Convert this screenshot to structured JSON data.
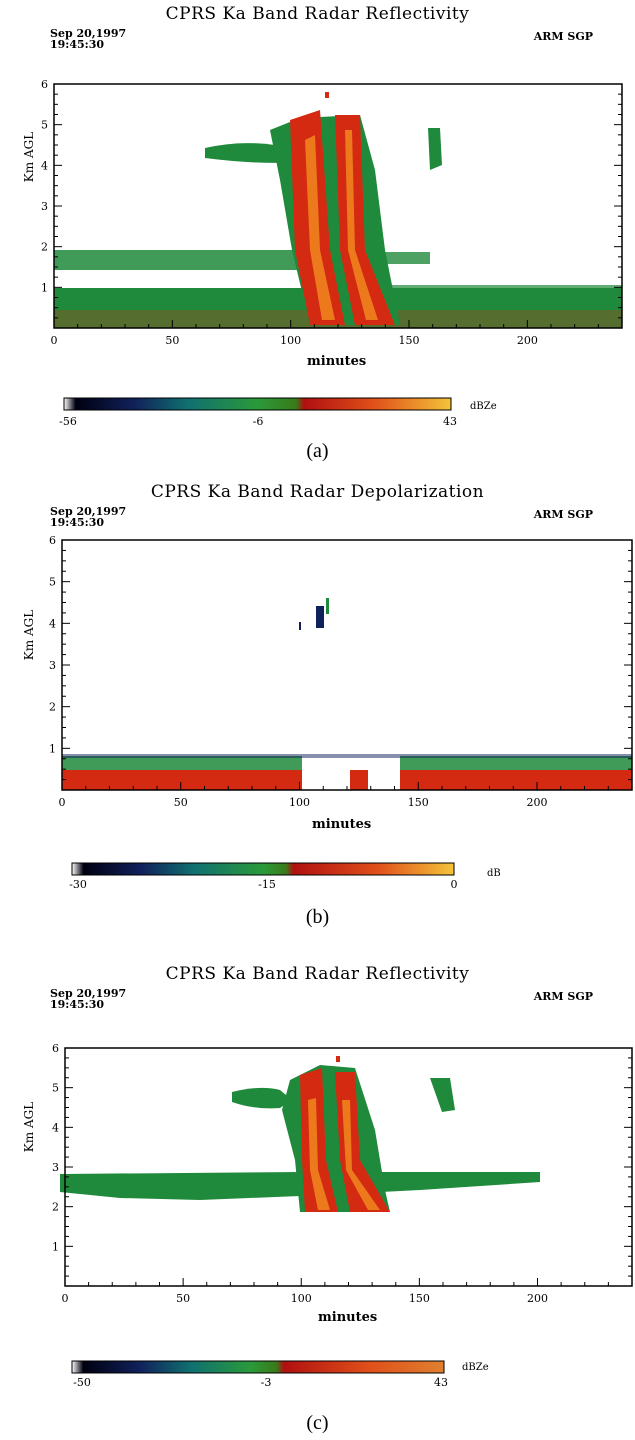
{
  "chart_data": [
    {
      "type": "heatmap",
      "title": "CPRS Ka Band Radar Reflectivity",
      "date": "Sep 20,1997",
      "time": "19:45:30",
      "site": "ARM SGP",
      "xlabel": "minutes",
      "ylabel": "Km AGL",
      "xlim": [
        0,
        240
      ],
      "ylim": [
        0,
        6
      ],
      "xticks": [
        "0",
        "50",
        "100",
        "150",
        "200"
      ],
      "yticks": [
        "1",
        "2",
        "3",
        "4",
        "5",
        "6"
      ],
      "colorbar": {
        "ticks": [
          "-56",
          "-6",
          "43"
        ],
        "units": "dBZe",
        "range": [
          -56,
          43
        ]
      },
      "caption": "(a)"
    },
    {
      "type": "heatmap",
      "title": "CPRS Ka Band Radar Depolarization",
      "date": "Sep 20,1997",
      "time": "19:45:30",
      "site": "ARM SGP",
      "xlabel": "minutes",
      "ylabel": "Km AGL",
      "xlim": [
        0,
        240
      ],
      "ylim": [
        0,
        6
      ],
      "xticks": [
        "0",
        "50",
        "100",
        "150",
        "200"
      ],
      "yticks": [
        "1",
        "2",
        "3",
        "4",
        "5",
        "6"
      ],
      "colorbar": {
        "ticks": [
          "-30",
          "-15",
          "0"
        ],
        "units": "dB",
        "range": [
          -30,
          0
        ]
      },
      "caption": "(b)"
    },
    {
      "type": "heatmap",
      "title": "CPRS Ka Band Radar Reflectivity",
      "date": "Sep 20,1997",
      "time": "19:45:30",
      "site": "ARM SGP",
      "xlabel": "minutes",
      "ylabel": "Km AGL",
      "xlim": [
        0,
        240
      ],
      "ylim": [
        0,
        6
      ],
      "xticks": [
        "0",
        "50",
        "100",
        "150",
        "200"
      ],
      "yticks": [
        "1",
        "2",
        "3",
        "4",
        "5",
        "6"
      ],
      "colorbar": {
        "ticks": [
          "-50",
          "-3",
          "43"
        ],
        "units": "dBZe",
        "range": [
          -50,
          43
        ]
      },
      "caption": "(c)"
    }
  ],
  "colors": {
    "green": "#1f8a3c",
    "dark_green": "#0f6e2c",
    "red": "#d42a12",
    "orange": "#ec7a1c",
    "yellow": "#f2c23a",
    "navy": "#10205a"
  }
}
